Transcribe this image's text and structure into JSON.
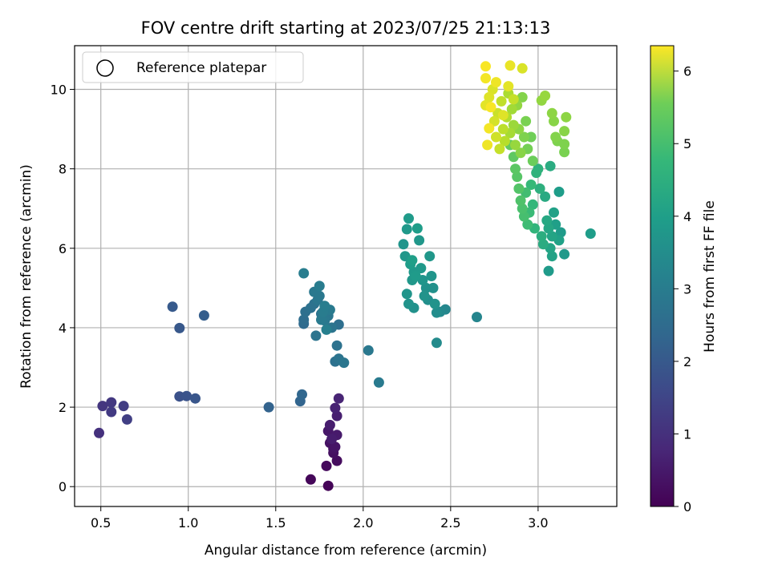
{
  "chart_data": {
    "type": "scatter",
    "title": "FOV centre drift starting at 2023/07/25 21:13:13",
    "xlabel": "Angular distance from reference (arcmin)",
    "ylabel": "Rotation from reference (arcmin)",
    "xlim": [
      0.35,
      3.45
    ],
    "ylim": [
      -0.5,
      11.1
    ],
    "xticks": [
      "0.5",
      "1.0",
      "1.5",
      "2.0",
      "2.5",
      "3.0"
    ],
    "yticks": [
      "0",
      "2",
      "4",
      "6",
      "8",
      "10"
    ],
    "grid": true,
    "legend": {
      "position": "top-left",
      "entries": [
        "Reference platepar"
      ]
    },
    "colorbar": {
      "label": "Hours from first FF file",
      "range": [
        0,
        6.35
      ],
      "ticks": [
        "0",
        "1",
        "2",
        "3",
        "4",
        "5",
        "6"
      ],
      "colormap": "viridis"
    },
    "points": [
      [
        1.8,
        0.02,
        0.05
      ],
      [
        1.7,
        0.18,
        0.1
      ],
      [
        1.79,
        0.52,
        0.15
      ],
      [
        1.85,
        0.65,
        0.2
      ],
      [
        1.83,
        0.85,
        0.25
      ],
      [
        1.81,
        1.1,
        0.3
      ],
      [
        1.84,
        1.0,
        0.35
      ],
      [
        1.8,
        1.4,
        0.4
      ],
      [
        1.85,
        1.3,
        0.45
      ],
      [
        1.81,
        1.55,
        0.5
      ],
      [
        1.85,
        1.78,
        0.55
      ],
      [
        1.84,
        1.98,
        0.6
      ],
      [
        1.86,
        2.22,
        0.65
      ],
      [
        1.82,
        1.2,
        0.5
      ],
      [
        1.83,
        0.95,
        0.3
      ],
      [
        0.49,
        1.35,
        0.9
      ],
      [
        0.51,
        2.03,
        1.0
      ],
      [
        0.56,
        2.12,
        1.05
      ],
      [
        0.56,
        1.88,
        1.1
      ],
      [
        0.63,
        2.03,
        1.15
      ],
      [
        0.65,
        1.69,
        1.2
      ],
      [
        0.95,
        2.27,
        1.6
      ],
      [
        0.99,
        2.28,
        1.65
      ],
      [
        1.04,
        2.22,
        1.7
      ],
      [
        0.95,
        3.99,
        1.75
      ],
      [
        0.91,
        4.53,
        1.8
      ],
      [
        1.09,
        4.31,
        1.9
      ],
      [
        1.46,
        2.0,
        2.0
      ],
      [
        1.64,
        2.15,
        2.05
      ],
      [
        1.65,
        2.32,
        2.1
      ],
      [
        1.66,
        4.1,
        2.2
      ],
      [
        1.66,
        4.2,
        2.25
      ],
      [
        1.67,
        4.4,
        2.3
      ],
      [
        1.7,
        4.5,
        2.35
      ],
      [
        1.72,
        4.6,
        2.4
      ],
      [
        1.73,
        3.8,
        2.45
      ],
      [
        1.74,
        4.7,
        2.5
      ],
      [
        1.75,
        4.8,
        2.55
      ],
      [
        1.76,
        4.2,
        2.6
      ],
      [
        1.77,
        4.4,
        2.65
      ],
      [
        1.78,
        4.55,
        2.7
      ],
      [
        1.79,
        3.95,
        2.75
      ],
      [
        1.8,
        4.3,
        2.5
      ],
      [
        1.81,
        4.45,
        2.6
      ],
      [
        1.82,
        4.0,
        2.45
      ],
      [
        1.72,
        4.9,
        2.55
      ],
      [
        1.75,
        5.05,
        2.65
      ],
      [
        1.66,
        5.37,
        2.7
      ],
      [
        1.86,
        4.08,
        2.3
      ],
      [
        1.84,
        3.15,
        2.35
      ],
      [
        1.85,
        3.55,
        2.4
      ],
      [
        1.86,
        3.22,
        2.45
      ],
      [
        1.89,
        3.12,
        2.5
      ],
      [
        2.03,
        3.43,
        2.55
      ],
      [
        2.09,
        2.62,
        2.6
      ],
      [
        1.76,
        4.35,
        2.4
      ],
      [
        1.78,
        4.18,
        2.55
      ],
      [
        2.23,
        6.1,
        3.3
      ],
      [
        2.24,
        5.8,
        3.35
      ],
      [
        2.25,
        6.48,
        3.4
      ],
      [
        2.26,
        6.75,
        3.45
      ],
      [
        2.27,
        5.6,
        3.5
      ],
      [
        2.28,
        5.7,
        3.55
      ],
      [
        2.29,
        5.4,
        3.4
      ],
      [
        2.3,
        5.3,
        3.45
      ],
      [
        2.31,
        6.5,
        3.5
      ],
      [
        2.32,
        6.2,
        3.35
      ],
      [
        2.33,
        5.5,
        3.4
      ],
      [
        2.34,
        5.2,
        3.3
      ],
      [
        2.35,
        4.8,
        3.25
      ],
      [
        2.36,
        5.0,
        3.2
      ],
      [
        2.37,
        4.7,
        3.15
      ],
      [
        2.38,
        5.8,
        3.35
      ],
      [
        2.39,
        5.3,
        3.3
      ],
      [
        2.4,
        5.0,
        3.2
      ],
      [
        2.41,
        4.6,
        3.25
      ],
      [
        2.42,
        4.38,
        3.1
      ],
      [
        2.42,
        3.62,
        3.05
      ],
      [
        2.44,
        4.4,
        3.0
      ],
      [
        2.47,
        4.46,
        2.95
      ],
      [
        2.25,
        4.85,
        3.3
      ],
      [
        2.26,
        4.6,
        3.25
      ],
      [
        2.29,
        4.5,
        3.2
      ],
      [
        2.28,
        5.2,
        3.35
      ],
      [
        2.65,
        4.27,
        2.9
      ],
      [
        2.84,
        8.6,
        4.8
      ],
      [
        2.86,
        8.3,
        4.75
      ],
      [
        2.87,
        8.0,
        4.7
      ],
      [
        2.88,
        7.8,
        4.65
      ],
      [
        2.89,
        7.5,
        4.6
      ],
      [
        2.9,
        7.2,
        4.55
      ],
      [
        2.91,
        7.0,
        4.5
      ],
      [
        2.92,
        6.8,
        4.45
      ],
      [
        2.93,
        7.4,
        4.4
      ],
      [
        2.94,
        6.6,
        4.35
      ],
      [
        2.95,
        6.9,
        4.3
      ],
      [
        2.96,
        7.6,
        4.25
      ],
      [
        2.97,
        7.1,
        4.2
      ],
      [
        2.98,
        6.5,
        4.15
      ],
      [
        2.99,
        7.9,
        4.1
      ],
      [
        3.0,
        8.0,
        4.05
      ],
      [
        3.01,
        7.5,
        4.0
      ],
      [
        3.02,
        6.3,
        3.95
      ],
      [
        3.03,
        6.1,
        3.9
      ],
      [
        3.04,
        7.3,
        3.85
      ],
      [
        3.05,
        6.7,
        3.8
      ],
      [
        3.06,
        6.5,
        3.75
      ],
      [
        3.07,
        6.0,
        3.7
      ],
      [
        3.08,
        5.8,
        3.65
      ],
      [
        3.09,
        6.9,
        3.6
      ],
      [
        3.1,
        6.6,
        3.55
      ],
      [
        3.12,
        7.42,
        3.5
      ],
      [
        3.13,
        6.4,
        3.45
      ],
      [
        3.15,
        5.85,
        3.4
      ],
      [
        3.06,
        5.43,
        3.45
      ],
      [
        3.07,
        8.07,
        3.9
      ],
      [
        3.3,
        6.37,
        3.5
      ],
      [
        3.12,
        6.2,
        3.6
      ],
      [
        3.08,
        6.3,
        3.7
      ],
      [
        2.7,
        9.6,
        6.1
      ],
      [
        2.72,
        9.8,
        6.05
      ],
      [
        2.74,
        10.0,
        6.0
      ],
      [
        2.75,
        9.2,
        5.95
      ],
      [
        2.76,
        8.8,
        5.9
      ],
      [
        2.77,
        9.4,
        5.85
      ],
      [
        2.78,
        8.5,
        5.8
      ],
      [
        2.79,
        9.7,
        5.75
      ],
      [
        2.8,
        9.0,
        5.7
      ],
      [
        2.81,
        8.7,
        5.65
      ],
      [
        2.82,
        9.3,
        5.6
      ],
      [
        2.83,
        9.9,
        5.55
      ],
      [
        2.84,
        8.9,
        5.5
      ],
      [
        2.85,
        9.5,
        5.45
      ],
      [
        2.86,
        9.1,
        5.4
      ],
      [
        2.87,
        8.6,
        5.35
      ],
      [
        2.88,
        9.6,
        5.3
      ],
      [
        2.89,
        9.0,
        5.25
      ],
      [
        2.9,
        8.4,
        5.2
      ],
      [
        2.91,
        9.8,
        5.15
      ],
      [
        2.92,
        8.8,
        5.1
      ],
      [
        2.93,
        9.2,
        5.05
      ],
      [
        2.94,
        8.5,
        5.0
      ],
      [
        2.96,
        8.8,
        4.95
      ],
      [
        2.97,
        8.2,
        4.9
      ],
      [
        2.7,
        10.58,
        6.3
      ],
      [
        2.7,
        10.28,
        6.25
      ],
      [
        2.76,
        10.18,
        6.2
      ],
      [
        2.84,
        10.6,
        6.15
      ],
      [
        2.83,
        10.08,
        6.1
      ],
      [
        2.91,
        10.53,
        6.0
      ],
      [
        2.72,
        9.02,
        6.25
      ],
      [
        2.71,
        8.6,
        6.2
      ],
      [
        2.73,
        9.55,
        6.3
      ],
      [
        2.8,
        9.35,
        6.05
      ],
      [
        2.86,
        9.75,
        5.8
      ],
      [
        3.02,
        9.72,
        5.3
      ],
      [
        3.04,
        9.84,
        5.35
      ],
      [
        3.08,
        9.4,
        5.25
      ],
      [
        3.09,
        9.2,
        5.2
      ],
      [
        3.1,
        8.8,
        5.15
      ],
      [
        3.11,
        8.7,
        5.1
      ],
      [
        3.15,
        8.95,
        5.2
      ],
      [
        3.16,
        9.3,
        5.25
      ],
      [
        3.15,
        8.62,
        5.1
      ],
      [
        3.15,
        8.42,
        5.05
      ]
    ]
  }
}
